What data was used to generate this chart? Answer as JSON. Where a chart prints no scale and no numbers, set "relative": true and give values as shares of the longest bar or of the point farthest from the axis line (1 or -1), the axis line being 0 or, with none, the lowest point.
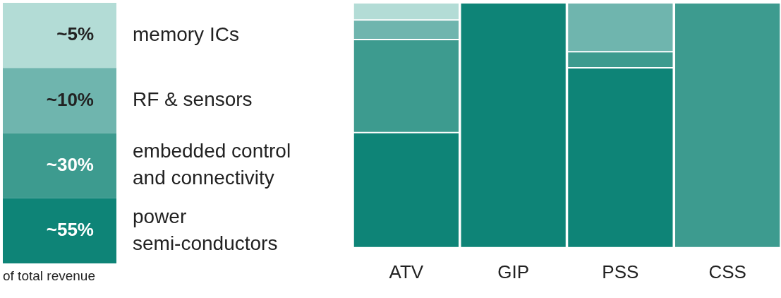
{
  "chart_data": [
    {
      "type": "other",
      "categories": [
        "memory ICs",
        "RF & sensors",
        "embedded control and connectivity",
        "power semi-conductors"
      ],
      "values": [
        5,
        10,
        30,
        55
      ],
      "value_labels": [
        "~5%",
        "~10%",
        "~30%",
        "~55%"
      ],
      "colors": [
        "#b3dcd6",
        "#6fb5ae",
        "#3d9b8f",
        "#0e8477"
      ],
      "annotations": [
        "of total revenue"
      ]
    },
    {
      "type": "bar",
      "stacked": true,
      "relative": true,
      "categories": [
        "ATV",
        "GIP",
        "PSS",
        "CSS"
      ],
      "grid": false,
      "legend": false,
      "series": [
        {
          "color": "#0e8477",
          "values": [
            0.47,
            1,
            0.735,
            null
          ]
        },
        {
          "color": "#3d9b8f",
          "values": [
            0.38,
            null,
            0.065,
            1
          ]
        },
        {
          "color": "#6fb5ae",
          "values": [
            0.08,
            null,
            0.2,
            null
          ]
        },
        {
          "color": "#b3dcd6",
          "values": [
            0.07,
            null,
            null,
            null
          ]
        }
      ]
    }
  ]
}
